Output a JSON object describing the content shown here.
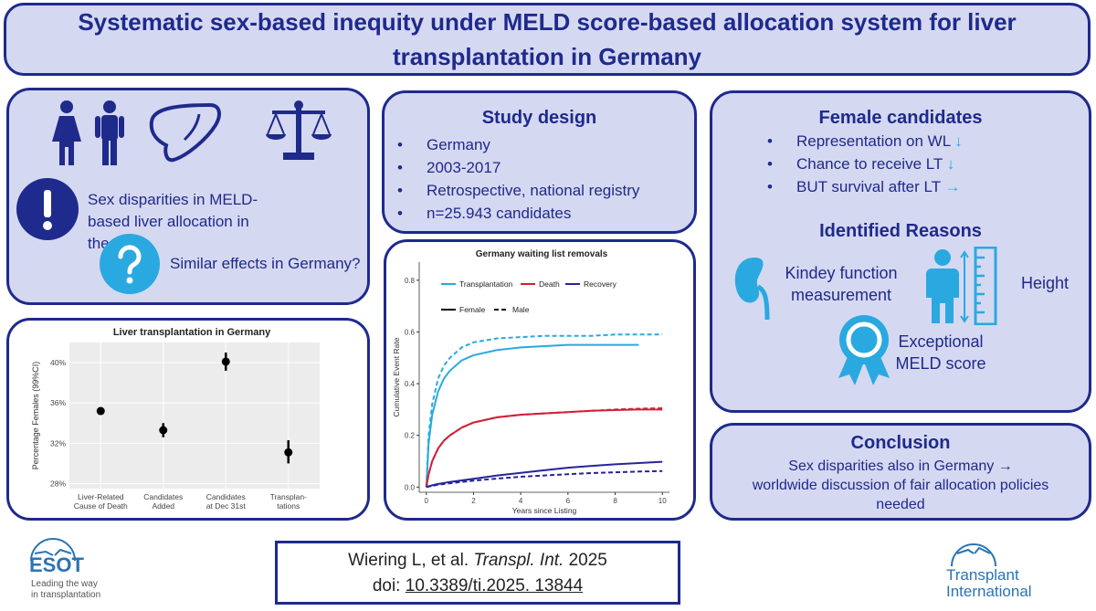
{
  "title": "Systematic sex-based inequity under MELD score-based allocation system for liver transplantation in Germany",
  "left_panel": {
    "icons": [
      "people-icon",
      "liver-icon",
      "scales-icon",
      "exclamation-icon",
      "question-icon"
    ],
    "disparity_text": "Sex disparities in MELD-based liver allocation in the US",
    "question_text": "Similar effects in Germany?"
  },
  "study_design": {
    "heading": "Study design",
    "items": [
      "Germany",
      "2003-2017",
      "Retrospective, national registry",
      "n=25.943 candidates"
    ]
  },
  "female_candidates": {
    "heading": "Female candidates",
    "items": [
      {
        "text": "Representation on WL",
        "arrow": "↓"
      },
      {
        "text": "Chance to receive LT",
        "arrow": "↓"
      },
      {
        "text": "BUT survival after LT",
        "arrow": "→"
      }
    ],
    "reasons_heading": "Identified Reasons",
    "kidney_text": "Kindey function measurement",
    "height_text": "Height",
    "meld_text": "Exceptional MELD score",
    "icons": [
      "kidney-icon",
      "person-height-icon",
      "ruler-icon",
      "award-icon"
    ]
  },
  "conclusion": {
    "heading": "Conclusion",
    "line1": "Sex disparities also in Germany →",
    "line2": "worldwide discussion of fair allocation policies",
    "line3": "needed"
  },
  "reference": {
    "authors": "Wiering L, et al.",
    "journal": "Transpl. Int.",
    "year": "2025",
    "doi_label": "doi:",
    "doi": "10.3389/ti.2025. 13844"
  },
  "logos": {
    "esot": "ESOT",
    "esot_tagline1": "Leading the way",
    "esot_tagline2": "in transplantation",
    "ti_line1": "Transplant",
    "ti_line2": "International"
  },
  "colors": {
    "navy": "#1e2a8c",
    "panel_bg": "#d5d8f1",
    "light_blue": "#29a9e0",
    "red": "#d0203a",
    "dark_blue": "#27249a"
  },
  "chart_data": [
    {
      "type": "scatter",
      "title": "Liver transplantation in Germany",
      "ylabel": "Percentage Females (99%CI)",
      "categories": [
        "Liver-Related Cause of Death",
        "Candidates Added",
        "Candidates at Dec 31st",
        "Transplan-tations"
      ],
      "category_lines": [
        [
          "Liver-Related",
          "Cause of Death"
        ],
        [
          "Candidates",
          "Added"
        ],
        [
          "Candidates",
          "at Dec 31st"
        ],
        [
          "Transplan-",
          "tations"
        ]
      ],
      "values": [
        35.2,
        33.3,
        40.1,
        31.1
      ],
      "ci_low": [
        35.0,
        32.6,
        39.2,
        30.0
      ],
      "ci_high": [
        35.4,
        34.0,
        41.0,
        32.3
      ],
      "ylim": [
        27.5,
        42.0
      ],
      "yticks": [
        28,
        32,
        36,
        40
      ],
      "ytick_labels": [
        "28%",
        "32%",
        "36%",
        "40%"
      ],
      "grid": true
    },
    {
      "type": "line",
      "title": "Germany waiting list removals",
      "xlabel": "Years since Listing",
      "ylabel": "Cumulative Event Rate",
      "xlim": [
        -0.3,
        10.3
      ],
      "ylim": [
        -0.02,
        0.87
      ],
      "xticks": [
        0,
        2,
        4,
        6,
        8,
        10
      ],
      "yticks": [
        0.0,
        0.2,
        0.4,
        0.6,
        0.8
      ],
      "legend_events": [
        "Transplantation",
        "Death",
        "Recovery"
      ],
      "legend_sex": [
        "Female",
        "Male"
      ],
      "x": [
        0,
        0.1,
        0.25,
        0.5,
        0.75,
        1,
        1.5,
        2,
        3,
        4,
        5,
        6,
        7,
        8,
        9,
        10
      ],
      "series": [
        {
          "name": "Transplantation",
          "sex": "Female",
          "color": "#29a9e0",
          "dash": false,
          "xmax": 9.2,
          "values": [
            0,
            0.17,
            0.28,
            0.37,
            0.42,
            0.45,
            0.49,
            0.51,
            0.53,
            0.54,
            0.545,
            0.55,
            0.55,
            0.55,
            0.55,
            0.55
          ]
        },
        {
          "name": "Transplantation",
          "sex": "Male",
          "color": "#29a9e0",
          "dash": true,
          "xmax": 10,
          "values": [
            0,
            0.2,
            0.32,
            0.42,
            0.47,
            0.5,
            0.54,
            0.56,
            0.575,
            0.58,
            0.585,
            0.585,
            0.585,
            0.59,
            0.59,
            0.59
          ]
        },
        {
          "name": "Death",
          "sex": "Female",
          "color": "#d0203a",
          "dash": false,
          "xmax": 10,
          "values": [
            0,
            0.05,
            0.1,
            0.15,
            0.18,
            0.2,
            0.23,
            0.25,
            0.27,
            0.28,
            0.285,
            0.29,
            0.295,
            0.298,
            0.3,
            0.3
          ]
        },
        {
          "name": "Death",
          "sex": "Male",
          "color": "#d0203a",
          "dash": true,
          "xmax": 10,
          "values": [
            0,
            0.05,
            0.1,
            0.15,
            0.18,
            0.2,
            0.23,
            0.25,
            0.27,
            0.28,
            0.285,
            0.29,
            0.295,
            0.3,
            0.303,
            0.305
          ]
        },
        {
          "name": "Recovery",
          "sex": "Female",
          "color": "#27249a",
          "dash": false,
          "xmax": 10,
          "values": [
            0,
            0.003,
            0.007,
            0.012,
            0.016,
            0.02,
            0.026,
            0.032,
            0.045,
            0.055,
            0.065,
            0.075,
            0.082,
            0.088,
            0.093,
            0.098
          ]
        },
        {
          "name": "Recovery",
          "sex": "Male",
          "color": "#27249a",
          "dash": true,
          "xmax": 10,
          "values": [
            0,
            0.002,
            0.005,
            0.009,
            0.012,
            0.015,
            0.02,
            0.025,
            0.033,
            0.04,
            0.045,
            0.05,
            0.054,
            0.057,
            0.06,
            0.062
          ]
        }
      ]
    }
  ]
}
